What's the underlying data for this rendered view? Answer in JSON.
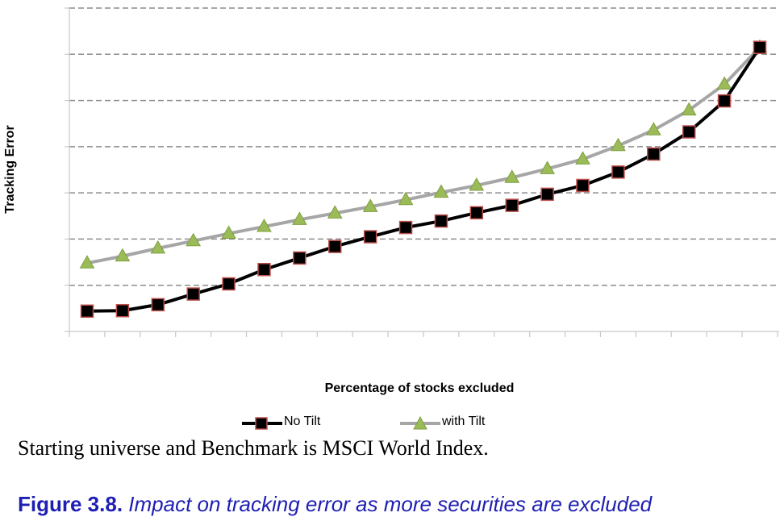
{
  "chart_data": {
    "type": "line",
    "title": "",
    "xlabel": "Percentage of stocks excluded",
    "ylabel": "Tracking Error",
    "x": [
      1,
      2,
      3,
      4,
      5,
      6,
      7,
      8,
      9,
      10,
      11,
      12,
      13,
      14,
      15,
      16,
      17,
      18,
      19,
      20
    ],
    "ylim": [
      0,
      7
    ],
    "grid": true,
    "legend_position": "bottom",
    "series": [
      {
        "name": "No Tilt",
        "color": "#000000",
        "marker": "square",
        "marker_fill": "#000000",
        "marker_edge": "#c0504d",
        "values": [
          0.44,
          0.45,
          0.58,
          0.81,
          1.03,
          1.34,
          1.59,
          1.84,
          2.05,
          2.25,
          2.39,
          2.57,
          2.73,
          2.97,
          3.16,
          3.45,
          3.84,
          4.32,
          4.99,
          6.15
        ]
      },
      {
        "name": "with Tilt",
        "color": "#a6a6a6",
        "marker": "triangle",
        "marker_fill": "#9bbb59",
        "marker_edge": "#9bbb59",
        "values": [
          1.48,
          1.63,
          1.8,
          1.96,
          2.12,
          2.27,
          2.42,
          2.56,
          2.7,
          2.85,
          3.01,
          3.16,
          3.33,
          3.52,
          3.73,
          4.02,
          4.36,
          4.79,
          5.35,
          6.15
        ]
      }
    ]
  },
  "caption": "Starting universe and Benchmark is MSCI World Index.",
  "figure": {
    "number": "Figure 3.8.",
    "text": "Impact on tracking error as more securities are excluded"
  }
}
